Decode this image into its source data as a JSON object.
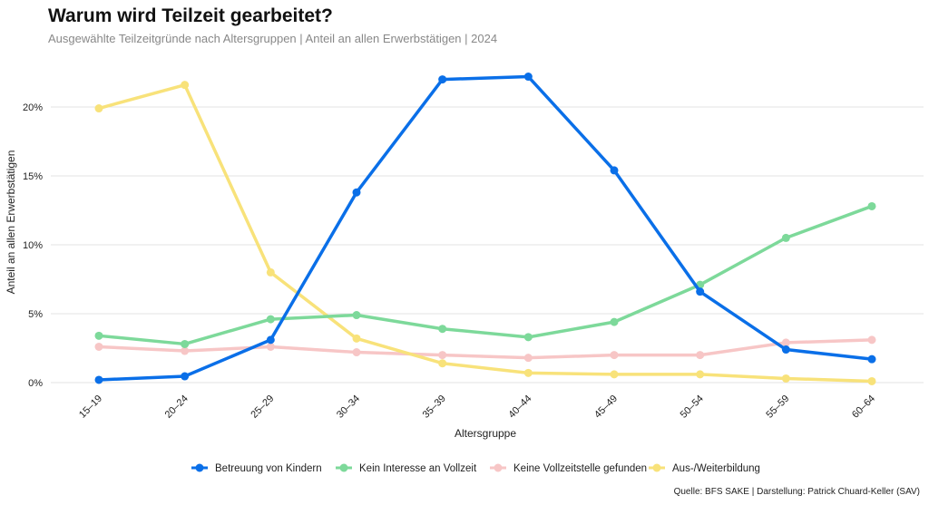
{
  "title": "Warum wird Teilzeit gearbeitet?",
  "subtitle": "Ausgewählte Teilzeitgründe nach Altersgruppen | Anteil an allen Erwerbstätigen | 2024",
  "source": "Quelle: BFS SAKE | Darstellung: Patrick Chuard-Keller (SAV)",
  "chart_data": {
    "type": "line",
    "xlabel": "Altersgruppe",
    "ylabel": "Anteil an allen Erwerbstätigen",
    "categories": [
      "15–19",
      "20–24",
      "25–29",
      "30–34",
      "35–39",
      "40–44",
      "45–49",
      "50–54",
      "55–59",
      "60–64"
    ],
    "yticks": [
      0,
      5,
      10,
      15,
      20
    ],
    "ytick_labels": [
      "0%",
      "5%",
      "10%",
      "15%",
      "20%"
    ],
    "ylim": [
      0,
      23
    ],
    "grid": "horizontal",
    "legend_position": "bottom",
    "series": [
      {
        "name": "Betreuung von Kindern",
        "color": "#0a6fe8",
        "values": [
          0.2,
          0.46,
          3.1,
          13.8,
          22.0,
          22.2,
          15.4,
          6.6,
          2.4,
          1.7
        ]
      },
      {
        "name": "Kein Interesse an Vollzeit",
        "color": "#7dd99a",
        "values": [
          3.4,
          2.8,
          4.6,
          4.9,
          3.9,
          3.3,
          4.4,
          7.1,
          10.5,
          12.8
        ]
      },
      {
        "name": "Keine Vollzeitstelle gefunden",
        "color": "#f7c6c6",
        "values": [
          2.6,
          2.3,
          2.6,
          2.2,
          2.0,
          1.8,
          2.0,
          2.0,
          2.9,
          3.1
        ]
      },
      {
        "name": "Aus-/Weiterbildung",
        "color": "#f8e27a",
        "values": [
          19.9,
          21.6,
          8.0,
          3.2,
          1.4,
          0.7,
          0.6,
          0.6,
          0.3,
          0.1
        ]
      }
    ]
  }
}
